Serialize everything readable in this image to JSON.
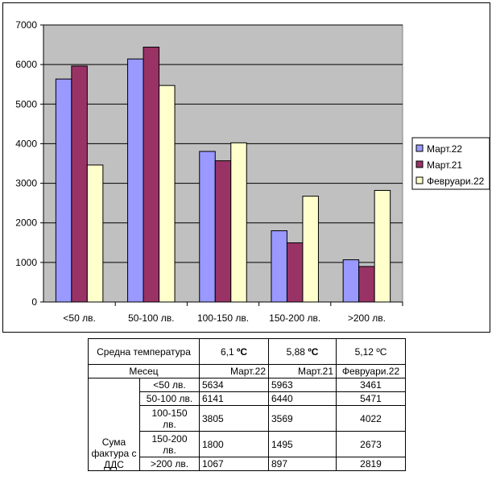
{
  "chart_data": {
    "type": "bar",
    "categories": [
      "<50 лв.",
      "50-100 лв.",
      "100-150 лв.",
      "150-200 лв.",
      ">200 лв."
    ],
    "series": [
      {
        "name": "Март.22",
        "values": [
          5634,
          6141,
          3805,
          1800,
          1067
        ],
        "color": "#9999ff"
      },
      {
        "name": "Март.21",
        "values": [
          5963,
          6440,
          3569,
          1495,
          897
        ],
        "color": "#993366"
      },
      {
        "name": "Февруари.22",
        "values": [
          3461,
          5471,
          4022,
          2673,
          2819
        ],
        "color": "#ffffcc"
      }
    ],
    "ylim": [
      0,
      7000
    ],
    "yticks": [
      "0",
      "1000",
      "2000",
      "3000",
      "4000",
      "5000",
      "6000",
      "7000"
    ],
    "title": "",
    "xlabel": "",
    "ylabel": "",
    "grid": true,
    "legend": "right",
    "plot_background": "#c0c0c0"
  },
  "table": {
    "temp_label": "Средна температура",
    "temps": [
      {
        "value": "6,1",
        "unit": "ºC"
      },
      {
        "value": "5,88",
        "unit": "ºC"
      },
      {
        "value": "5,12",
        "unit": "ºC"
      }
    ],
    "month_label": "Месец",
    "months": [
      "Март.22",
      "Март.21",
      "Февруари.22"
    ],
    "group_label": "Сума фактура с ДДС",
    "rows": [
      {
        "label": "<50 лв.",
        "values": [
          "5634",
          "5963",
          "3461"
        ]
      },
      {
        "label": "50-100 лв.",
        "values": [
          "6141",
          "6440",
          "5471"
        ]
      },
      {
        "label": "100-150 лв.",
        "values": [
          "3805",
          "3569",
          "4022"
        ]
      },
      {
        "label": "150-200 лв.",
        "values": [
          "1800",
          "1495",
          "2673"
        ]
      },
      {
        "label": ">200 лв.",
        "values": [
          "1067",
          "897",
          "2819"
        ]
      }
    ]
  }
}
